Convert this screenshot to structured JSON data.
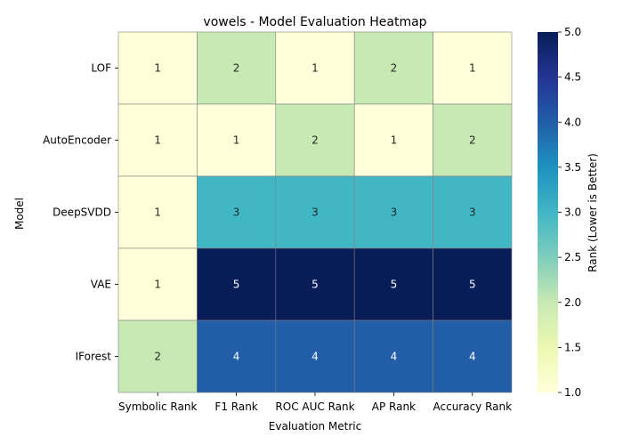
{
  "chart_data": {
    "type": "heatmap",
    "title": "vowels - Model Evaluation Heatmap",
    "xlabel": "Evaluation Metric",
    "ylabel": "Model",
    "colorbar_label": "Rank (Lower is Better)",
    "colormap": "YlGnBu",
    "vmin": 1,
    "vmax": 5,
    "colorbar_ticks": [
      1.0,
      1.5,
      2.0,
      2.5,
      3.0,
      3.5,
      4.0,
      4.5,
      5.0
    ],
    "columns": [
      "Symbolic Rank",
      "F1 Rank",
      "ROC AUC Rank",
      "AP Rank",
      "Accuracy Rank"
    ],
    "rows": [
      "LOF",
      "AutoEncoder",
      "DeepSVDD",
      "VAE",
      "IForest"
    ],
    "values": [
      [
        1,
        2,
        1,
        2,
        1
      ],
      [
        1,
        1,
        2,
        1,
        2
      ],
      [
        1,
        3,
        3,
        3,
        3
      ],
      [
        1,
        5,
        5,
        5,
        5
      ],
      [
        2,
        4,
        4,
        4,
        4
      ]
    ]
  }
}
